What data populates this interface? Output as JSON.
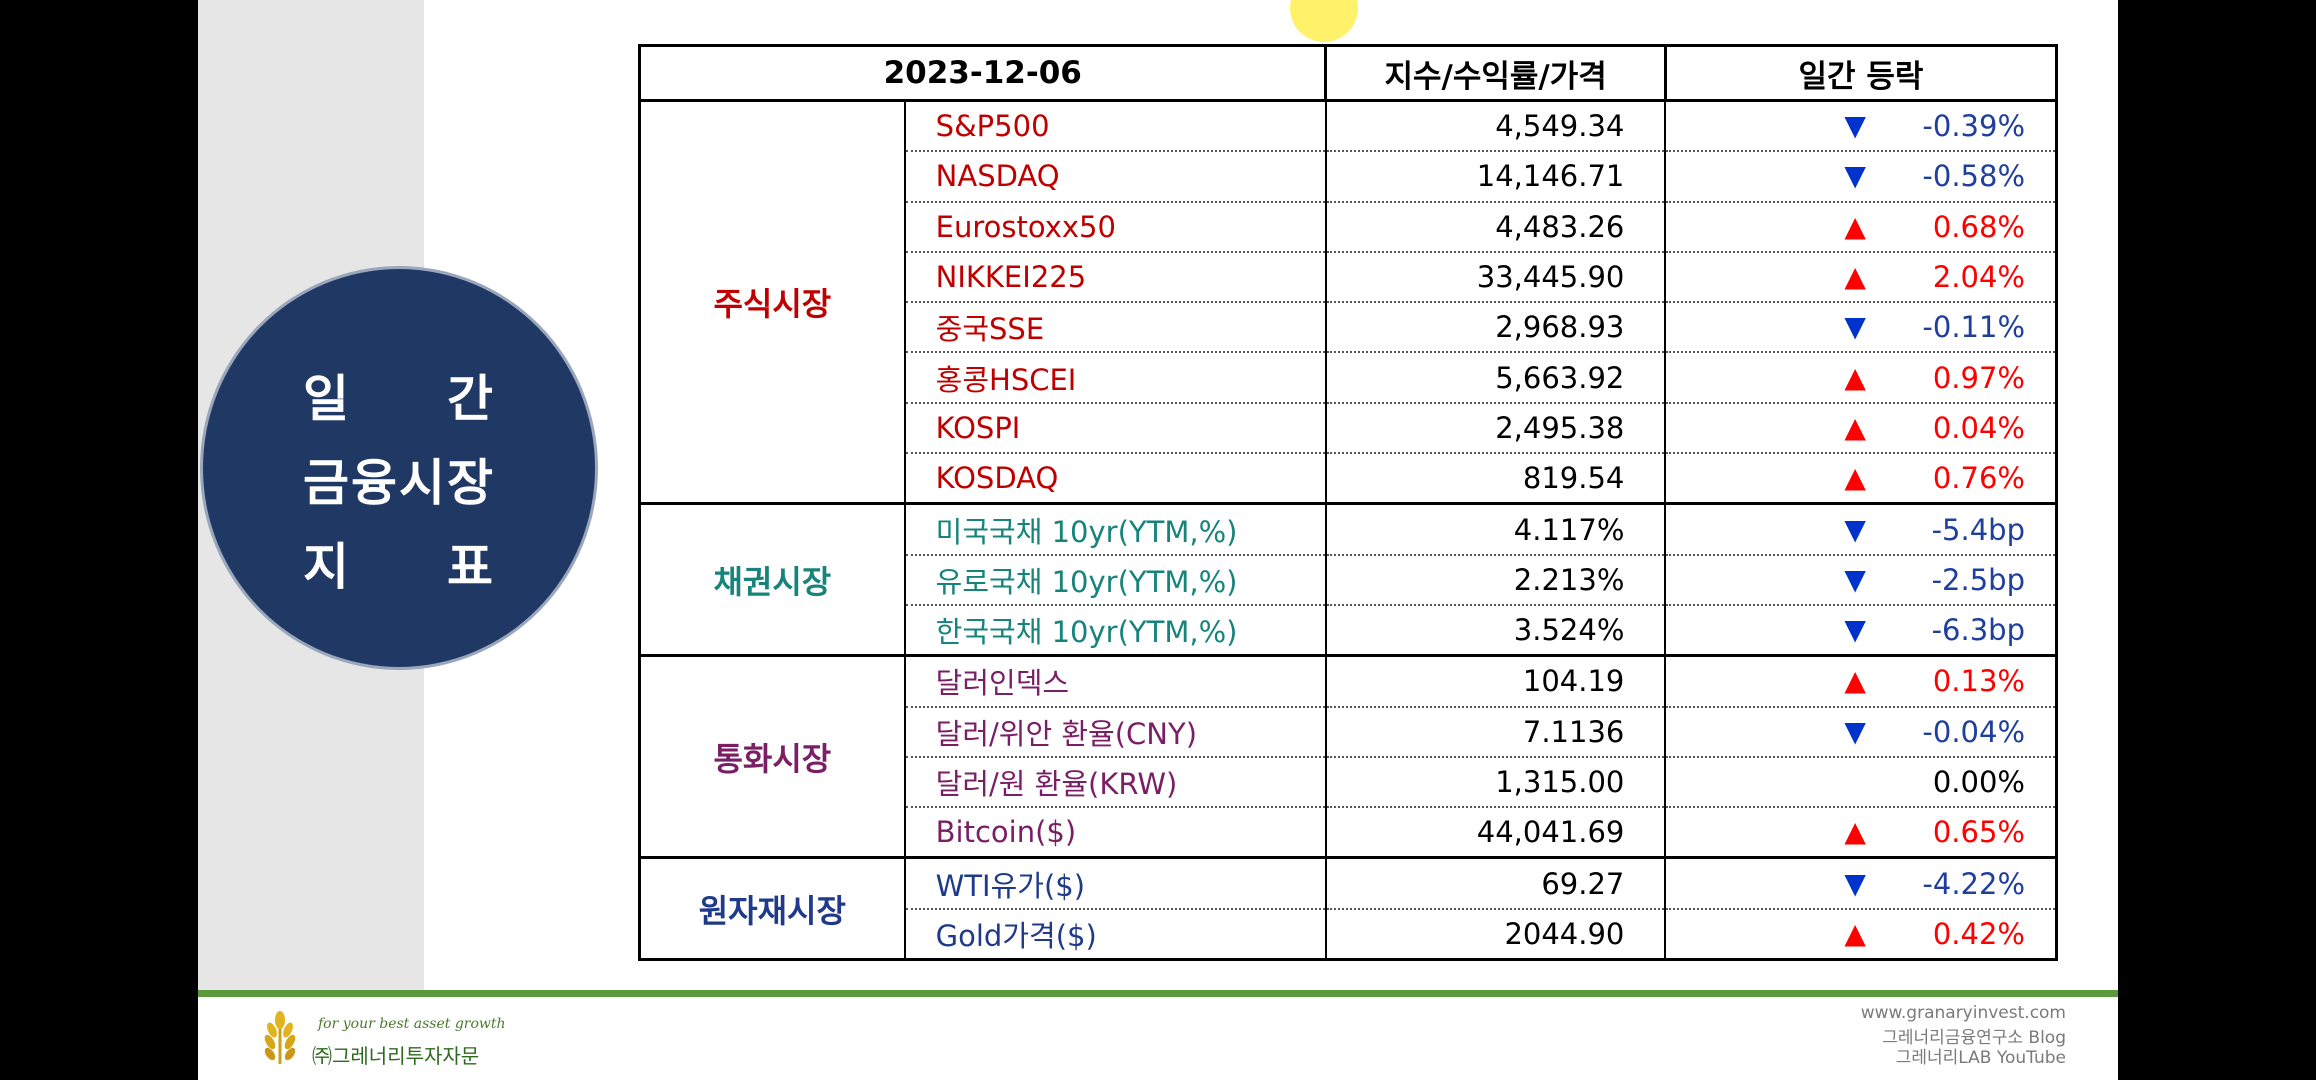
{
  "title": {
    "line1_a": "일",
    "line1_b": "간",
    "line2": "금융시장",
    "line3_a": "지",
    "line3_b": "표"
  },
  "table": {
    "header": {
      "date": "2023-12-06",
      "value": "지수/수익률/가격",
      "change": "일간 등락"
    },
    "groups": {
      "stock": "주식시장",
      "bond": "채권시장",
      "fx": "통화시장",
      "commodity": "원자재시장"
    },
    "rows": [
      {
        "name": "S&P500",
        "value": "4,549.34",
        "change": "-0.39%",
        "dir": "down"
      },
      {
        "name": "NASDAQ",
        "value": "14,146.71",
        "change": "-0.58%",
        "dir": "down"
      },
      {
        "name": "Eurostoxx50",
        "value": "4,483.26",
        "change": "0.68%",
        "dir": "up"
      },
      {
        "name": "NIKKEI225",
        "value": "33,445.90",
        "change": "2.04%",
        "dir": "up"
      },
      {
        "name": "중국SSE",
        "value": "2,968.93",
        "change": "-0.11%",
        "dir": "down"
      },
      {
        "name": "홍콩HSCEI",
        "value": "5,663.92",
        "change": "0.97%",
        "dir": "up"
      },
      {
        "name": "KOSPI",
        "value": "2,495.38",
        "change": "0.04%",
        "dir": "up"
      },
      {
        "name": "KOSDAQ",
        "value": "819.54",
        "change": "0.76%",
        "dir": "up"
      },
      {
        "name": "미국국채 10yr(YTM,%)",
        "value": "4.117%",
        "change": "-5.4bp",
        "dir": "down"
      },
      {
        "name": "유로국채 10yr(YTM,%)",
        "value": "2.213%",
        "change": "-2.5bp",
        "dir": "down"
      },
      {
        "name": "한국국채 10yr(YTM,%)",
        "value": "3.524%",
        "change": "-6.3bp",
        "dir": "down"
      },
      {
        "name": "달러인덱스",
        "value": "104.19",
        "change": "0.13%",
        "dir": "up"
      },
      {
        "name": "달러/위안 환율(CNY)",
        "value": "7.1136",
        "change": "-0.04%",
        "dir": "down"
      },
      {
        "name": "달러/원 환율(KRW)",
        "value": "1,315.00",
        "change": "0.00%",
        "dir": "flat"
      },
      {
        "name": "Bitcoin($)",
        "value": "44,041.69",
        "change": "0.65%",
        "dir": "up"
      },
      {
        "name": "WTI유가($)",
        "value": "69.27",
        "change": "-4.22%",
        "dir": "down"
      },
      {
        "name": "Gold가격($)",
        "value": "2044.90",
        "change": "0.42%",
        "dir": "up"
      }
    ],
    "arrows": {
      "up": "▲",
      "down": "▼"
    }
  },
  "colors": {
    "stock": "#c00000",
    "bond": "#17847c",
    "fx": "#7a1f66",
    "commodity": "#1f3a8a",
    "up": "#ff0000",
    "down": "#0033cc",
    "title_circle": "#203864",
    "footer_line": "#5b9a3c"
  },
  "footer": {
    "tagline": "for your best asset growth",
    "company": "㈜그레너리투자자문",
    "website": "www.granaryinvest.com",
    "blog": "그레너리금융연구소 Blog",
    "youtube": "그레너리LAB YouTube",
    "logo_icon": "wheat-icon"
  }
}
